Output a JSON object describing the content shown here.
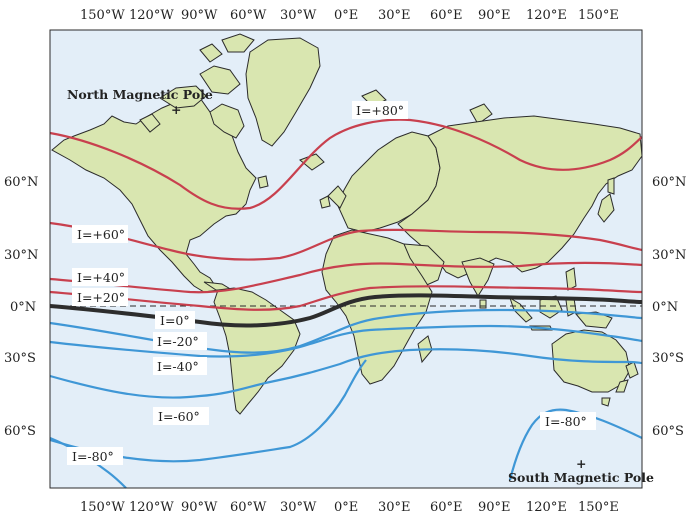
{
  "map": {
    "x_ticks": [
      "150°W",
      "120°W",
      "90°W",
      "60°W",
      "30°W",
      "0°E",
      "30°E",
      "60°E",
      "90°E",
      "120°E",
      "150°E"
    ],
    "y_ticks": [
      "60°N",
      "30°N",
      "0°N",
      "30°S",
      "60°S"
    ],
    "colors": {
      "ocean": "#e3eef8",
      "land": "#d9e6b0",
      "coast": "#2b2b2b",
      "positive_isoclinic": "#c8404e",
      "negative_isoclinic": "#3f97d6",
      "zero_isoclinic": "#2d2d2d"
    },
    "isoclinics": [
      {
        "label": "I=+80°",
        "inclination": 80
      },
      {
        "label": "I=+60°",
        "inclination": 60
      },
      {
        "label": "I=+40°",
        "inclination": 40
      },
      {
        "label": "I=+20°",
        "inclination": 20
      },
      {
        "label": "I=0°",
        "inclination": 0
      },
      {
        "label": "I=-20°",
        "inclination": -20
      },
      {
        "label": "I=-40°",
        "inclination": -40
      },
      {
        "label": "I=-60°",
        "inclination": -60
      },
      {
        "label": "I=-80°",
        "inclination": -80
      }
    ],
    "extra_label": "I=-80°",
    "north_pole": {
      "label": "North Magnetic Pole",
      "marker": "+"
    },
    "south_pole": {
      "label": "South Magnetic Pole",
      "marker": "+"
    }
  }
}
